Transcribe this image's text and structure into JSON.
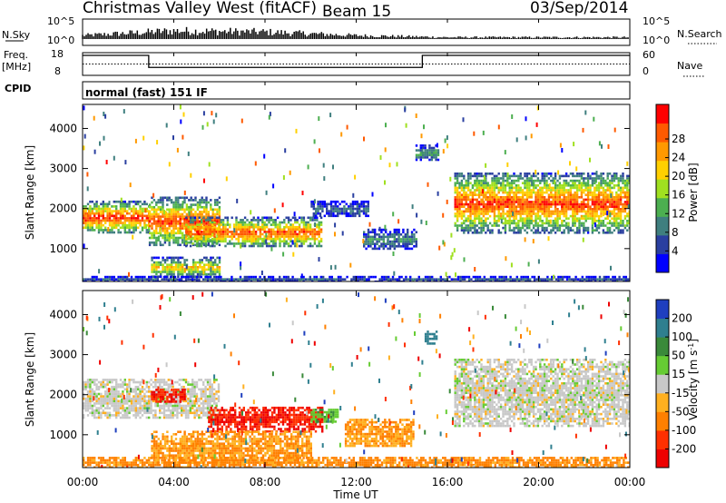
{
  "header": {
    "title": "Christmas Valley West (fitACF)",
    "beam": "Beam 15",
    "date": "03/Sep/2014"
  },
  "strip": {
    "nsky_label": "N.Sky",
    "nsky_ticks": [
      "10^5",
      "10^0"
    ],
    "nsearch_label": "N.Search",
    "freq_label_1": "Freq.",
    "freq_label_2": "[MHz]",
    "freq_ticks": [
      "18",
      "8"
    ],
    "nave_ticks": [
      "60",
      "0"
    ],
    "nave_label": "Nave",
    "cpid_label": "CPID",
    "cpid_text": "normal (fast) 151 IF"
  },
  "axes": {
    "xlabel": "Time UT",
    "ylabel": "Slant Range [km]",
    "xticks": [
      "00:00",
      "04:00",
      "08:00",
      "12:00",
      "16:00",
      "20:00",
      "00:00"
    ],
    "yticks": [
      "1000",
      "2000",
      "3000",
      "4000"
    ]
  },
  "power_colorbar": {
    "label": "Power [dB]",
    "ticks": [
      "4",
      "8",
      "12",
      "16",
      "20",
      "24",
      "28"
    ],
    "colors": [
      "#0000ff",
      "#2a3fa0",
      "#3f7f7f",
      "#4caf50",
      "#a0e020",
      "#ffd000",
      "#ff9900",
      "#ff5a00",
      "#ff0000"
    ]
  },
  "velocity_colorbar": {
    "label": "Velocity [m s",
    "label_sup": "-1",
    "label_end": "]",
    "ticks": [
      "200",
      "100",
      "50",
      "15",
      "-15",
      "-50",
      "-100",
      "-200"
    ],
    "colors": [
      "#1f3fbf",
      "#2f7f8f",
      "#3a8a3a",
      "#66cc33",
      "#c8c8c8",
      "#ffb020",
      "#ff8000",
      "#ff3000",
      "#ee0000"
    ]
  },
  "chart_data": [
    {
      "type": "line",
      "panel": "N.Sky / N.Search",
      "x": [
        0,
        4,
        8,
        12,
        16,
        20,
        24
      ],
      "series": [
        {
          "name": "N.Sky",
          "values": [
            6,
            14,
            12,
            6,
            3,
            3,
            3
          ]
        }
      ]
    },
    {
      "type": "line",
      "panel": "Freq. [MHz] / Nave",
      "x": [
        0,
        2.9,
        2.9,
        14.9,
        14.9,
        24
      ],
      "series": [
        {
          "name": "Freq.",
          "values": [
            16.8,
            16.8,
            11.5,
            11.5,
            16.8,
            16.8
          ]
        },
        {
          "name": "Nave",
          "values": [
            30,
            30,
            30,
            30,
            30,
            30
          ]
        }
      ]
    },
    {
      "type": "heatmap",
      "title": "Power [dB]",
      "xlabel": "Time UT",
      "ylabel": "Slant Range [km]",
      "xlim": [
        0,
        24
      ],
      "ylim": [
        180,
        4600
      ],
      "zlim": [
        0,
        30
      ],
      "regions": [
        {
          "t0": 0.0,
          "t1": 2.9,
          "r0": 1400,
          "r1": 2200,
          "peak": 28
        },
        {
          "t0": 2.9,
          "t1": 6.0,
          "r0": 1100,
          "r1": 2300,
          "peak": 27
        },
        {
          "t0": 4.5,
          "t1": 10.5,
          "r0": 1050,
          "r1": 1800,
          "peak": 26
        },
        {
          "t0": 3.0,
          "t1": 6.0,
          "r0": 300,
          "r1": 800,
          "peak": 20
        },
        {
          "t0": 10.0,
          "t1": 12.5,
          "r0": 1800,
          "r1": 2200,
          "peak": 8
        },
        {
          "t0": 12.3,
          "t1": 14.6,
          "r0": 1000,
          "r1": 1500,
          "peak": 10
        },
        {
          "t0": 14.6,
          "t1": 15.6,
          "r0": 3200,
          "r1": 3600,
          "peak": 12
        },
        {
          "t0": 16.3,
          "t1": 24.0,
          "r0": 1400,
          "r1": 2900,
          "peak": 27
        },
        {
          "t0": 0.0,
          "t1": 24.0,
          "r0": 200,
          "r1": 320,
          "peak": 6
        }
      ]
    },
    {
      "type": "heatmap",
      "title": "Velocity [m s-1]",
      "xlabel": "Time UT",
      "ylabel": "Slant Range [km]",
      "xlim": [
        0,
        24
      ],
      "ylim": [
        180,
        4600
      ],
      "zlim": [
        -200,
        200
      ],
      "regions": [
        {
          "t0": 0.0,
          "t1": 6.0,
          "r0": 1400,
          "r1": 2400,
          "value": 0
        },
        {
          "t0": 3.0,
          "t1": 4.5,
          "r0": 1850,
          "r1": 2150,
          "value": -200
        },
        {
          "t0": 5.5,
          "t1": 10.5,
          "r0": 1100,
          "r1": 1700,
          "value": -200
        },
        {
          "t0": 3.0,
          "t1": 10.0,
          "r0": 300,
          "r1": 1100,
          "value": -50
        },
        {
          "t0": 10.0,
          "t1": 11.2,
          "r0": 1300,
          "r1": 1650,
          "value": 40
        },
        {
          "t0": 11.5,
          "t1": 14.5,
          "r0": 700,
          "r1": 1400,
          "value": -50
        },
        {
          "t0": 15.0,
          "t1": 15.5,
          "r0": 3300,
          "r1": 3600,
          "value": 150
        },
        {
          "t0": 16.3,
          "t1": 24.0,
          "r0": 1200,
          "r1": 2900,
          "value": 0
        },
        {
          "t0": 0.0,
          "t1": 24.0,
          "r0": 200,
          "r1": 450,
          "value": -60
        }
      ]
    }
  ]
}
